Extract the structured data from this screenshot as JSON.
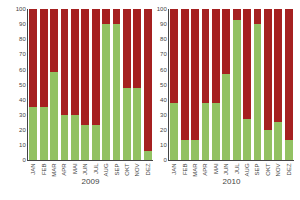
{
  "chart_data": [
    {
      "type": "bar",
      "stacked": true,
      "grid": false,
      "xlabel": "2009",
      "categories": [
        "JAN",
        "FEB",
        "MAR",
        "APR",
        "MAI",
        "JUN",
        "JUL",
        "AUG",
        "SEP",
        "OKT",
        "NOV",
        "DEZ"
      ],
      "series": [
        {
          "color": "#92c162",
          "values": [
            35,
            35,
            58,
            30,
            30,
            23,
            23,
            90,
            90,
            48,
            48,
            6
          ]
        },
        {
          "color": "#a52020",
          "values": [
            65,
            65,
            42,
            70,
            70,
            77,
            77,
            10,
            10,
            52,
            52,
            94
          ]
        }
      ],
      "ylim": [
        0,
        100
      ],
      "yticks": [
        0,
        10,
        20,
        30,
        40,
        50,
        60,
        70,
        80,
        90,
        100
      ]
    },
    {
      "type": "bar",
      "stacked": true,
      "grid": false,
      "xlabel": "2010",
      "categories": [
        "JAN",
        "FEB",
        "MAR",
        "APR",
        "MAI",
        "JUN",
        "JUL",
        "AUG",
        "SEP",
        "OKT",
        "NOV",
        "DEZ"
      ],
      "series": [
        {
          "color": "#92c162",
          "values": [
            38,
            13,
            13,
            38,
            38,
            57,
            93,
            27,
            90,
            20,
            25,
            13
          ]
        },
        {
          "color": "#a52020",
          "values": [
            62,
            87,
            87,
            62,
            62,
            43,
            7,
            73,
            10,
            80,
            75,
            87
          ]
        }
      ],
      "ylim": [
        0,
        100
      ],
      "yticks": [
        0,
        10,
        20,
        30,
        40,
        50,
        60,
        70,
        80,
        90,
        100
      ]
    }
  ]
}
